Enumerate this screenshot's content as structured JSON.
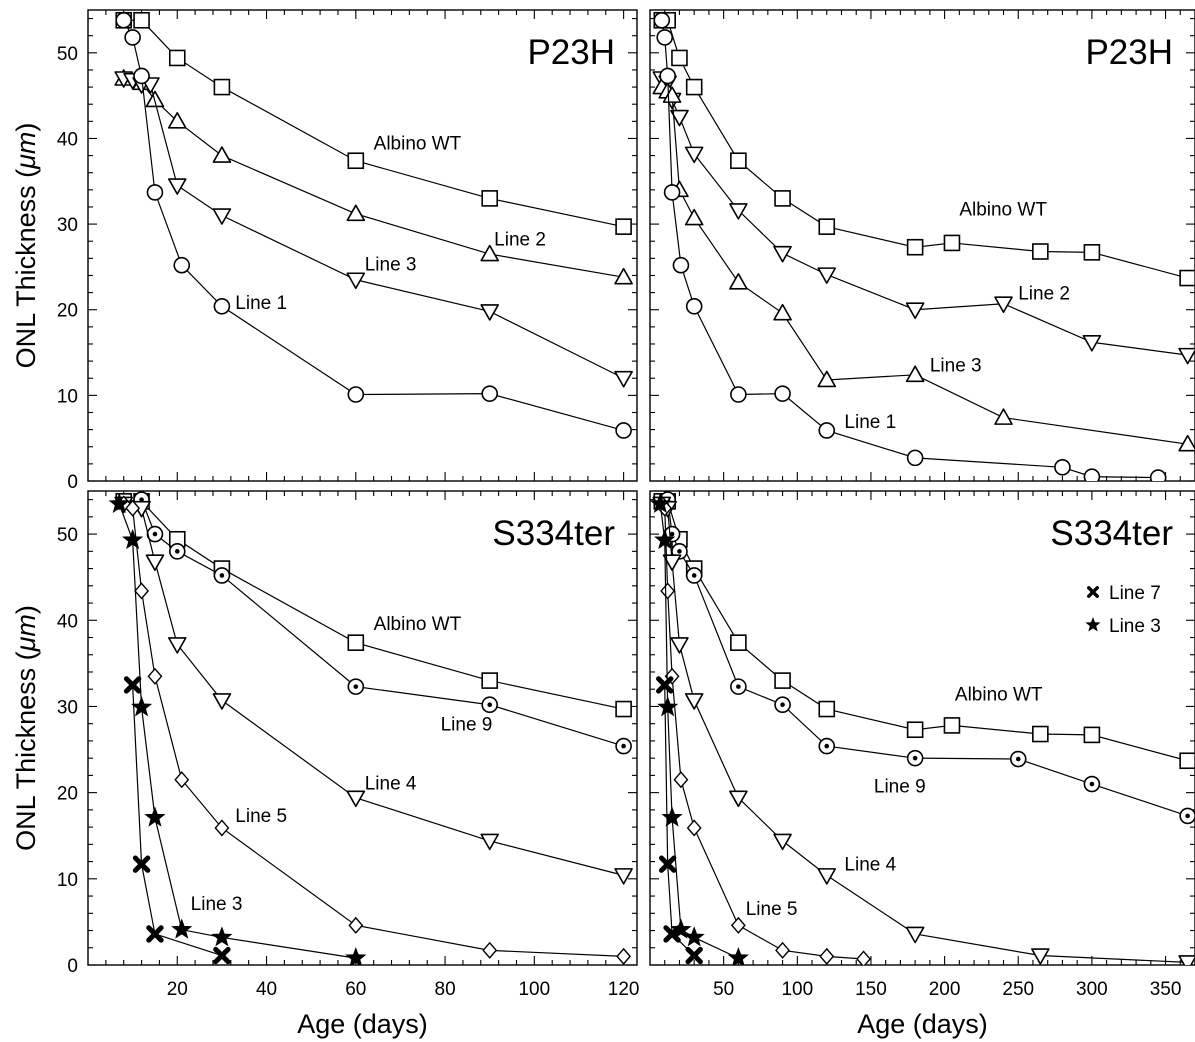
{
  "chart_data": [
    {
      "id": "p23h-120",
      "type": "line",
      "title": "P23H",
      "xlabel": "",
      "ylabel": "ONL Thickness (μm)",
      "xlim": [
        0,
        123
      ],
      "ylim": [
        0,
        55
      ],
      "xticks": [
        20,
        40,
        60,
        80,
        100,
        120
      ],
      "xtick_labels_shown": false,
      "yticks": [
        0,
        10,
        20,
        30,
        40,
        50
      ],
      "series": [
        {
          "name": "Albino WT",
          "marker": "square",
          "x": [
            8,
            12,
            20,
            30,
            60,
            90,
            120
          ],
          "y": [
            53.8,
            53.8,
            49.4,
            46.0,
            37.4,
            33.0,
            29.7
          ]
        },
        {
          "name": "Line 2",
          "marker": "triangle-up",
          "x": [
            8,
            12,
            15,
            20,
            30,
            60,
            90,
            120
          ],
          "y": [
            47.0,
            46.5,
            44.5,
            42.0,
            38.0,
            31.2,
            26.5,
            23.8
          ]
        },
        {
          "name": "Line 3",
          "marker": "triangle-down",
          "x": [
            8,
            10,
            12,
            14,
            20,
            30,
            60,
            90,
            120
          ],
          "y": [
            47.0,
            46.8,
            46.3,
            46.3,
            34.5,
            31.0,
            23.5,
            19.8,
            12.0
          ]
        },
        {
          "name": "Line 1",
          "marker": "circle",
          "x": [
            8,
            10,
            12,
            15,
            21,
            30,
            60,
            90,
            120
          ],
          "y": [
            53.8,
            51.8,
            47.3,
            33.7,
            25.2,
            20.4,
            10.1,
            10.2,
            5.9
          ]
        }
      ],
      "annotations": [
        {
          "text": "Albino WT",
          "x": 64,
          "y": 39.5
        },
        {
          "text": "Line 2",
          "x": 91,
          "y": 28.3
        },
        {
          "text": "Line 3",
          "x": 62,
          "y": 25.4
        },
        {
          "text": "Line 1",
          "x": 33,
          "y": 20.9
        }
      ]
    },
    {
      "id": "p23h-365",
      "type": "line",
      "title": "P23H",
      "xlabel": "",
      "ylabel": "",
      "xlim": [
        0,
        370
      ],
      "ylim": [
        0,
        55
      ],
      "xticks": [
        50,
        100,
        150,
        200,
        250,
        300,
        350
      ],
      "xtick_labels_shown": false,
      "yticks": [
        0,
        10,
        20,
        30,
        40,
        50
      ],
      "ytick_labels_shown": false,
      "series": [
        {
          "name": "Albino WT",
          "marker": "square",
          "x": [
            8,
            12,
            20,
            30,
            60,
            90,
            120,
            180,
            205,
            265,
            300,
            365
          ],
          "y": [
            53.8,
            53.8,
            49.4,
            46.0,
            37.4,
            33.0,
            29.7,
            27.3,
            27.8,
            26.8,
            26.7,
            23.7
          ]
        },
        {
          "name": "Line 2",
          "marker": "triangle-down",
          "x": [
            8,
            12,
            15,
            20,
            30,
            60,
            90,
            120,
            180,
            240,
            300,
            365
          ],
          "y": [
            47.0,
            46.5,
            44.5,
            42.5,
            38.2,
            31.6,
            26.6,
            24.1,
            20.0,
            20.7,
            16.2,
            14.7
          ]
        },
        {
          "name": "Line 3",
          "marker": "triangle-up",
          "x": [
            8,
            12,
            15,
            20,
            30,
            60,
            90,
            120,
            180,
            240,
            365
          ],
          "y": [
            46.0,
            45.5,
            45.0,
            34.0,
            30.7,
            23.2,
            19.6,
            11.8,
            12.4,
            7.4,
            4.3
          ]
        },
        {
          "name": "Line 1",
          "marker": "circle",
          "x": [
            8,
            10,
            12,
            15,
            21,
            30,
            60,
            90,
            120,
            180,
            280,
            300,
            345
          ],
          "y": [
            53.8,
            51.8,
            47.3,
            33.7,
            25.2,
            20.4,
            10.1,
            10.2,
            5.9,
            2.7,
            1.6,
            0.5,
            0.4
          ]
        }
      ],
      "annotations": [
        {
          "text": "Albino WT",
          "x": 210,
          "y": 31.8
        },
        {
          "text": "Line 2",
          "x": 250,
          "y": 22.0
        },
        {
          "text": "Line 3",
          "x": 190,
          "y": 13.6
        },
        {
          "text": "Line 1",
          "x": 132,
          "y": 7.0
        }
      ]
    },
    {
      "id": "s334ter-120",
      "type": "line",
      "title": "S334ter",
      "xlabel": "Age (days)",
      "ylabel": "ONL Thickness (μm)",
      "xlim": [
        0,
        123
      ],
      "ylim": [
        0,
        55
      ],
      "xticks": [
        20,
        40,
        60,
        80,
        100,
        120
      ],
      "yticks": [
        0,
        10,
        20,
        30,
        40,
        50
      ],
      "series": [
        {
          "name": "Albino WT",
          "marker": "square",
          "x": [
            8,
            12,
            20,
            30,
            60,
            90,
            120
          ],
          "y": [
            53.8,
            53.8,
            49.4,
            46.0,
            37.4,
            33.0,
            29.7
          ]
        },
        {
          "name": "Line 9",
          "marker": "dotted-circle",
          "x": [
            12,
            15,
            20,
            30,
            60,
            90,
            120
          ],
          "y": [
            54.0,
            50.0,
            48.0,
            45.2,
            32.3,
            30.2,
            25.4
          ]
        },
        {
          "name": "Line 4",
          "marker": "triangle-down",
          "x": [
            8,
            12,
            15,
            20,
            30,
            60,
            90,
            120
          ],
          "y": [
            53.5,
            53.0,
            46.8,
            37.2,
            30.7,
            19.4,
            14.4,
            10.4
          ]
        },
        {
          "name": "Line 5",
          "marker": "diamond",
          "x": [
            8,
            10,
            12,
            15,
            21,
            30,
            60,
            90,
            120
          ],
          "y": [
            53.5,
            53.0,
            43.4,
            33.5,
            21.5,
            15.9,
            4.6,
            1.7,
            1.0
          ]
        },
        {
          "name": "Line 3",
          "marker": "star",
          "x": [
            7,
            10,
            12,
            15,
            21,
            30,
            60
          ],
          "y": [
            53.5,
            49.3,
            29.9,
            17.1,
            4.1,
            3.2,
            0.8
          ]
        },
        {
          "name": "Line 7",
          "marker": "x",
          "x": [
            10,
            12,
            15,
            30
          ],
          "y": [
            32.5,
            11.7,
            3.6,
            1.1
          ]
        }
      ],
      "annotations": [
        {
          "text": "Albino WT",
          "x": 64,
          "y": 39.7
        },
        {
          "text": "Line 9",
          "x": 79,
          "y": 28.0
        },
        {
          "text": "Line 4",
          "x": 62,
          "y": 21.2
        },
        {
          "text": "Line 5",
          "x": 33,
          "y": 17.4
        },
        {
          "text": "Line 3",
          "x": 23,
          "y": 7.2
        }
      ]
    },
    {
      "id": "s334ter-365",
      "type": "line",
      "title": "S334ter",
      "xlabel": "Age (days)",
      "ylabel": "",
      "xlim": [
        0,
        370
      ],
      "ylim": [
        0,
        55
      ],
      "xticks": [
        50,
        100,
        150,
        200,
        250,
        300,
        350
      ],
      "yticks": [
        0,
        10,
        20,
        30,
        40,
        50
      ],
      "ytick_labels_shown": false,
      "legend": {
        "placement": "right",
        "entries": [
          {
            "name": "Line 7",
            "marker": "x"
          },
          {
            "name": "Line 3",
            "marker": "star"
          }
        ]
      },
      "series": [
        {
          "name": "Albino WT",
          "marker": "square",
          "x": [
            8,
            12,
            20,
            30,
            60,
            90,
            120,
            180,
            205,
            265,
            300,
            365
          ],
          "y": [
            53.8,
            53.8,
            49.4,
            46.0,
            37.4,
            33.0,
            29.7,
            27.3,
            27.8,
            26.8,
            26.7,
            23.7
          ]
        },
        {
          "name": "Line 9",
          "marker": "dotted-circle",
          "x": [
            12,
            15,
            20,
            30,
            60,
            90,
            120,
            180,
            250,
            300,
            365
          ],
          "y": [
            54.0,
            50.0,
            48.0,
            45.2,
            32.3,
            30.2,
            25.4,
            24.0,
            23.9,
            21.0,
            17.3
          ]
        },
        {
          "name": "Line 4",
          "marker": "triangle-down",
          "x": [
            8,
            12,
            15,
            20,
            30,
            60,
            90,
            120,
            180,
            265,
            365
          ],
          "y": [
            53.5,
            53.0,
            46.8,
            37.2,
            30.7,
            19.4,
            14.4,
            10.4,
            3.6,
            1.1,
            0.3
          ]
        },
        {
          "name": "Line 5",
          "marker": "diamond",
          "x": [
            8,
            10,
            12,
            15,
            21,
            30,
            60,
            90,
            120,
            145
          ],
          "y": [
            53.5,
            53.0,
            43.4,
            33.5,
            21.5,
            15.9,
            4.6,
            1.7,
            1.0,
            0.7
          ]
        },
        {
          "name": "Line 3",
          "marker": "star",
          "x": [
            7,
            10,
            12,
            15,
            21,
            30,
            60
          ],
          "y": [
            53.5,
            49.3,
            29.9,
            17.1,
            4.1,
            3.2,
            0.8
          ]
        },
        {
          "name": "Line 7",
          "marker": "x",
          "x": [
            10,
            12,
            15,
            30
          ],
          "y": [
            32.5,
            11.7,
            3.6,
            1.1
          ]
        }
      ],
      "annotations": [
        {
          "text": "Albino WT",
          "x": 207,
          "y": 31.5
        },
        {
          "text": "Line 9",
          "x": 152,
          "y": 20.8
        },
        {
          "text": "Line 4",
          "x": 132,
          "y": 11.8
        },
        {
          "text": "Line 5",
          "x": 65,
          "y": 6.6
        }
      ]
    }
  ]
}
